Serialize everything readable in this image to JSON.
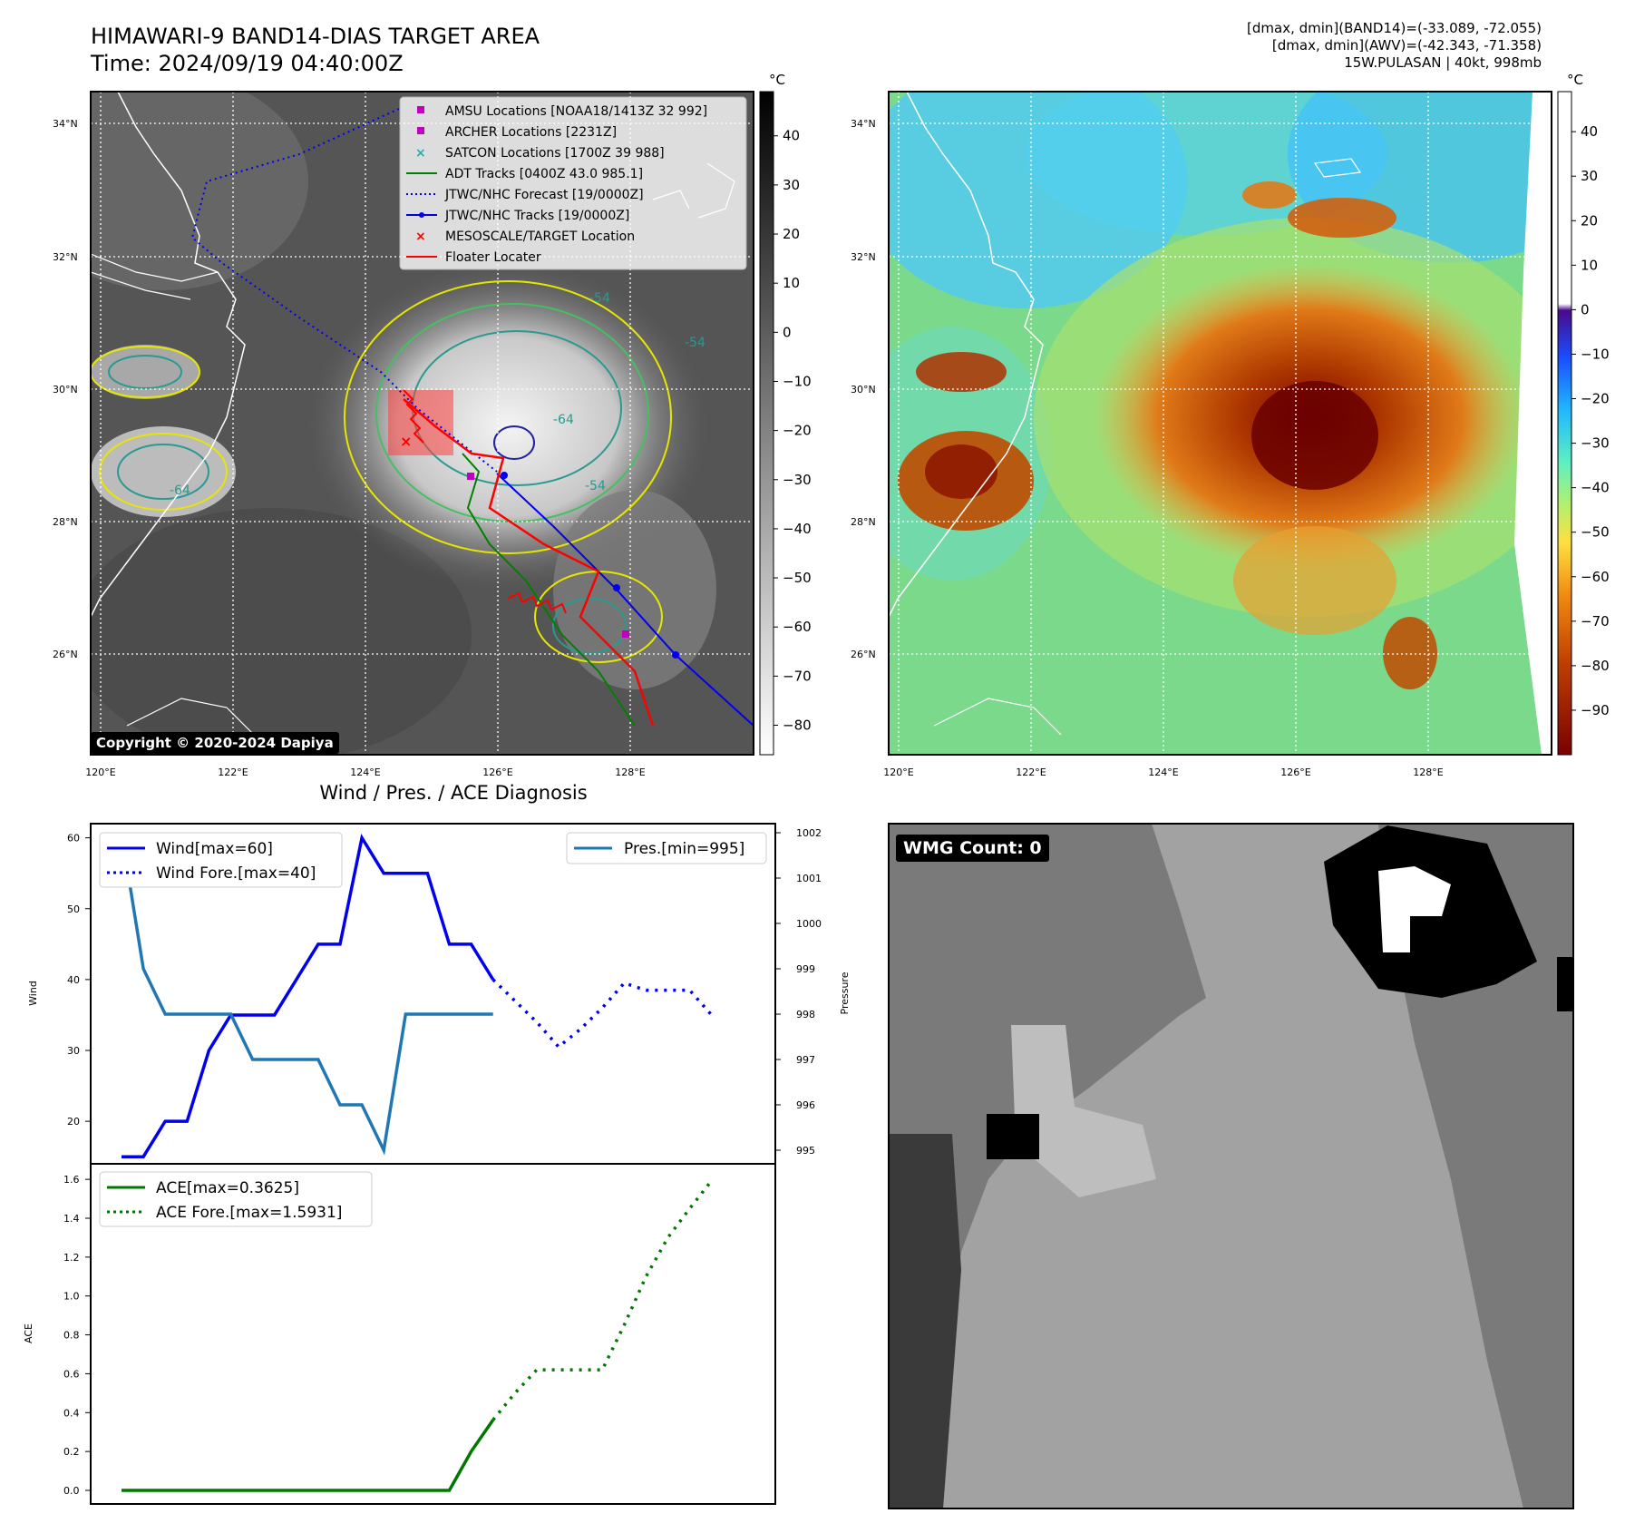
{
  "header": {
    "title_line1": "HIMAWARI-9 BAND14-DIAS TARGET AREA",
    "title_line2": "Time: 2024/09/19 04:40:00Z",
    "info_line1": "[dmax, dmin](BAND14)=(-33.089, -72.055)",
    "info_line2": "[dmax, dmin](AWV)=(-42.343, -71.358)",
    "info_line3": "15W.PULASAN | 40kt, 998mb"
  },
  "map": {
    "lat_labels": [
      "34°N",
      "32°N",
      "30°N",
      "28°N",
      "26°N"
    ],
    "lon_labels": [
      "120°E",
      "122°E",
      "124°E",
      "126°E",
      "128°E"
    ],
    "contour_labels": [
      "-54",
      "-54",
      "-64",
      "-64",
      "-54"
    ],
    "copyright": "Copyright © 2020-2024 Dapiya",
    "legend": [
      {
        "label": "AMSU Locations [NOAA18/1413Z 32 992]",
        "color": "#c000c0",
        "icon": "square-marker"
      },
      {
        "label": "ARCHER Locations [2231Z]",
        "color": "#c000c0",
        "icon": "square-marker"
      },
      {
        "label": "SATCON Locations [1700Z 39 988]",
        "color": "#20b0b0",
        "icon": "x-marker"
      },
      {
        "label": "ADT Tracks [0400Z 43.0 985.1]",
        "color": "#008000",
        "icon": "solid-line"
      },
      {
        "label": "JTWC/NHC Forecast [19/0000Z]",
        "color": "#0000ff",
        "icon": "dotted-line"
      },
      {
        "label": "JTWC/NHC Tracks [19/0000Z]",
        "color": "#0000ff",
        "icon": "line-dot"
      },
      {
        "label": "MESOSCALE/TARGET Location",
        "color": "#ff0000",
        "icon": "x-marker"
      },
      {
        "label": "Floater Locater",
        "color": "#ff0000",
        "icon": "solid-line"
      }
    ],
    "colorbar_gray": {
      "unit": "°C",
      "ticks": [
        "40",
        "30",
        "20",
        "10",
        "0",
        "−10",
        "−20",
        "−30",
        "−40",
        "−50",
        "−60",
        "−70",
        "−80"
      ]
    },
    "colorbar_awv": {
      "unit": "°C",
      "ticks": [
        "40",
        "30",
        "20",
        "10",
        "0",
        "−10",
        "−20",
        "−30",
        "−40",
        "−50",
        "−60",
        "−70",
        "−80",
        "−90"
      ]
    }
  },
  "chart_data": [
    {
      "type": "line",
      "title": "Wind / Pres. / ACE Diagnosis",
      "ylabel": "Wind",
      "y2label": "Pressure",
      "ylim": [
        14,
        62
      ],
      "y2lim": [
        994.7,
        1002.2
      ],
      "yticks": [
        "60",
        "50",
        "40",
        "30",
        "20"
      ],
      "y2ticks": [
        "1002",
        "1001",
        "1000",
        "999",
        "998",
        "997",
        "996",
        "995"
      ],
      "series": [
        {
          "name": "Wind[max=60]",
          "style": "solid",
          "color": "#0000ee",
          "axis": "y",
          "x": [
            0,
            1,
            2,
            3,
            4,
            5,
            6,
            7,
            8,
            9,
            10,
            11,
            12,
            13,
            14,
            15,
            16,
            17
          ],
          "values": [
            15,
            15,
            20,
            20,
            30,
            35,
            35,
            35,
            40,
            45,
            45,
            60,
            55,
            55,
            55,
            45,
            45,
            40
          ]
        },
        {
          "name": "Wind Fore.[max=40]",
          "style": "dotted",
          "color": "#0000ee",
          "axis": "y",
          "x": [
            17,
            18,
            19,
            20,
            21,
            22,
            23,
            24,
            25,
            26,
            27
          ],
          "values": [
            40,
            37,
            34,
            30.5,
            33,
            36,
            39.5,
            38.5,
            38.5,
            38.5,
            35
          ]
        },
        {
          "name": "Pres.[min=995]",
          "style": "solid",
          "color": "#1f77b4",
          "axis": "y2",
          "x": [
            0,
            1,
            2,
            3,
            4,
            5,
            6,
            7,
            8,
            9,
            10,
            11,
            12,
            13,
            14,
            15,
            16,
            17
          ],
          "values": [
            1002,
            999,
            998,
            998,
            998,
            998,
            997,
            997,
            997,
            997,
            996,
            996,
            995,
            998,
            998,
            998,
            998,
            998
          ]
        }
      ]
    },
    {
      "type": "line",
      "ylabel": "ACE",
      "ylim": [
        -0.07,
        1.68
      ],
      "yticks": [
        "1.6",
        "1.4",
        "1.2",
        "1.0",
        "0.8",
        "0.6",
        "0.4",
        "0.2",
        "0.0"
      ],
      "series": [
        {
          "name": "ACE[max=0.3625]",
          "style": "solid",
          "color": "#007800",
          "x": [
            0,
            1,
            2,
            3,
            4,
            5,
            6,
            7,
            8,
            9,
            10,
            11,
            12,
            13,
            14,
            15,
            16,
            17
          ],
          "values": [
            0,
            0,
            0,
            0,
            0,
            0,
            0,
            0,
            0,
            0,
            0,
            0,
            0,
            0,
            0,
            0,
            0.2,
            0.3625
          ]
        },
        {
          "name": "ACE Fore.[max=1.5931]",
          "style": "dotted",
          "color": "#007800",
          "x": [
            17,
            18,
            19,
            20,
            21,
            22,
            23,
            24,
            25,
            26,
            27
          ],
          "values": [
            0.3625,
            0.5,
            0.62,
            0.62,
            0.62,
            0.62,
            0.85,
            1.1,
            1.3,
            1.45,
            1.5931
          ]
        }
      ]
    }
  ],
  "wmg": {
    "label": "WMG Count: 0"
  }
}
